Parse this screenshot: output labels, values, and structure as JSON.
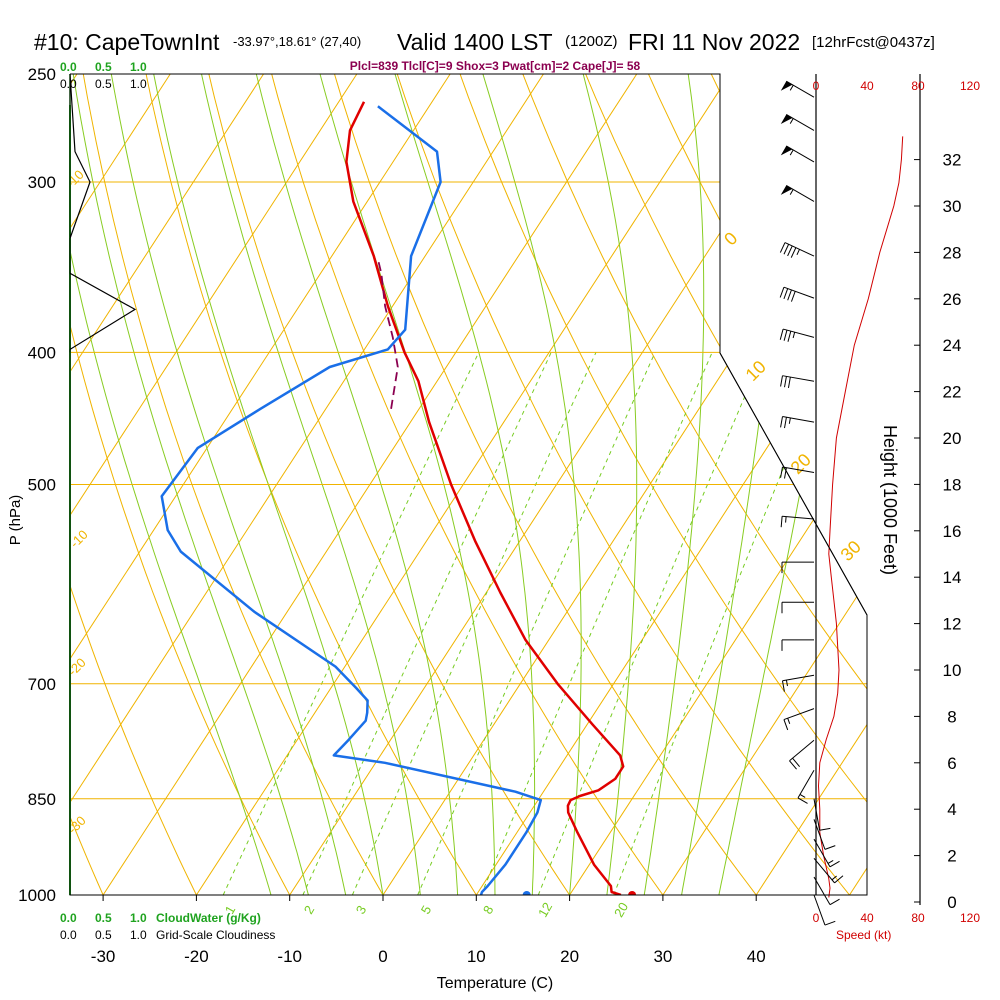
{
  "header": {
    "station": "#10: CapeTownInt",
    "coords": "-33.97°,18.61° (27,40)",
    "valid": "Valid 1400 LST",
    "zulu": "(1200Z)",
    "date": "FRI 11 Nov 2022",
    "forecast": "[12hrFcst@0437z]",
    "indices": "Plcl=839 Tlcl[C]=9 Shox=3 Pwat[cm]=2 Cape[J]= 58"
  },
  "colors": {
    "temperature": "#e00000",
    "dewpoint": "#1a6fe8",
    "isotherm": "#f0b400",
    "dry_adiabat": "#f0b400",
    "moist_adiabat": "#88cc22",
    "mixing_ratio": "#77cc22",
    "parcel": "#8b0050",
    "cloud_water": "#1fa31f",
    "wind_speed": "#d00000",
    "indices_text": "#8b0050"
  },
  "scales": {
    "cloudwater_ticks": [
      "0.0",
      "0.5",
      "1.0"
    ],
    "cloudiness_ticks": [
      "0.0",
      "0.5",
      "1.0"
    ],
    "cloudwater_label": "CloudWater (g/Kg)",
    "cloudiness_label": "Grid-Scale Cloudiness",
    "speed_ticks": [
      "0",
      "40",
      "80",
      "120"
    ],
    "speed_label": "Speed (kt)"
  },
  "chart_data": {
    "type": "line",
    "title": "Skew-T log-P sounding",
    "xlabel": "Temperature (C)",
    "ylabel": "P (hPa)",
    "y2label": "Height (1000 Feet)",
    "xlim": [
      -35,
      45
    ],
    "x_ticks": [
      -30,
      -20,
      -10,
      0,
      10,
      20,
      30,
      40
    ],
    "pressure_ticks": [
      250,
      300,
      400,
      500,
      700,
      850,
      1000
    ],
    "height_ticks": [
      0,
      2,
      4,
      6,
      8,
      10,
      12,
      14,
      16,
      18,
      20,
      22,
      24,
      26,
      28,
      30,
      32
    ],
    "isotherm_labels": [
      "-30",
      "-20",
      "-10",
      "0",
      "10",
      "20",
      "30"
    ],
    "mixing_ratio_labels": [
      "1",
      "2",
      "3",
      "5",
      "8",
      "12",
      "20"
    ],
    "series": [
      {
        "name": "Temperature",
        "pressure": [
          1000,
          995,
          985,
          950,
          900,
          870,
          860,
          852,
          846,
          838,
          822,
          805,
          790,
          750,
          700,
          650,
          600,
          550,
          500,
          450,
          420,
          400,
          370,
          340,
          310,
          290,
          275,
          262
        ],
        "temperature": [
          25.5,
          24.3,
          23.8,
          20.5,
          16.5,
          14.1,
          13.6,
          13.5,
          14.2,
          15.8,
          16.8,
          16.8,
          15.7,
          10.6,
          4.0,
          -2.5,
          -8.5,
          -14.8,
          -21.3,
          -28.0,
          -32.0,
          -35.5,
          -40.5,
          -45.5,
          -51.5,
          -55.0,
          -56.8,
          -57.3
        ]
      },
      {
        "name": "Dewpoint",
        "pressure": [
          1000,
          995,
          985,
          950,
          900,
          870,
          852,
          840,
          800,
          790,
          770,
          745,
          735,
          720,
          705,
          680,
          620,
          560,
          540,
          510,
          470,
          440,
          410,
          398,
          385,
          340,
          300,
          285,
          264
        ],
        "temperature": [
          10.5,
          10.4,
          10.6,
          11.0,
          11.0,
          10.8,
          10.3,
          7.0,
          -9.0,
          -15.0,
          -14.5,
          -14.0,
          -14.4,
          -15.2,
          -17.3,
          -21.0,
          -33.5,
          -45.6,
          -48.5,
          -51.5,
          -51.0,
          -47.0,
          -42.5,
          -37.5,
          -37.0,
          -41.5,
          -43.5,
          -46.0,
          -55.5
        ]
      },
      {
        "name": "Parcel",
        "pressure": [
          440,
          410,
          390,
          370,
          350,
          342
        ],
        "temperature": [
          -33.0,
          -35.2,
          -37.8,
          -40.8,
          -43.5,
          -44.8
        ]
      }
    ],
    "surface": {
      "temperature": 26.7,
      "dewpoint": 15.4
    },
    "wind_speed_kt": {
      "height_kft": [
        0.2,
        0.6,
        1.0,
        2.0,
        3.0,
        4.0,
        5.0,
        6.0,
        7.0,
        8.0,
        9.0,
        10.0,
        11.0,
        12.0,
        13.0,
        14.0,
        15.0,
        16.0,
        18.0,
        20.0,
        22.0,
        24.0,
        26.0,
        28.0,
        30.0,
        31.0,
        32.0,
        33.0
      ],
      "speed": [
        10,
        11,
        10,
        6,
        3,
        3,
        2,
        3,
        8,
        14,
        17,
        18,
        17,
        16,
        14,
        12,
        10,
        11,
        13,
        16,
        23,
        30,
        41,
        50,
        61,
        65,
        67,
        68
      ]
    },
    "wind_barbs": {
      "pressure": [
        260,
        275,
        290,
        310,
        340,
        365,
        390,
        420,
        450,
        490,
        530,
        570,
        610,
        650,
        690,
        730,
        770,
        810,
        850,
        880,
        910,
        940,
        970,
        1000
      ],
      "speed_kt": [
        55,
        55,
        55,
        55,
        45,
        40,
        35,
        30,
        25,
        20,
        15,
        10,
        10,
        10,
        15,
        15,
        20,
        15,
        10,
        10,
        15,
        15,
        10,
        10
      ],
      "direction_deg": [
        300,
        300,
        300,
        300,
        295,
        290,
        285,
        280,
        280,
        280,
        275,
        270,
        270,
        270,
        260,
        250,
        230,
        210,
        170,
        160,
        150,
        140,
        150,
        160
      ]
    },
    "cloud_water_gkg": {
      "pressure": [
        250,
        280,
        300,
        330,
        350,
        372,
        400
      ],
      "value": [
        0.0,
        0.0,
        0.0,
        0.0,
        0.0,
        0.0,
        0.0
      ]
    },
    "cloudiness": {
      "pressure": [
        250,
        285,
        300,
        330,
        350,
        372,
        398,
        400
      ],
      "value": [
        0.0,
        0.05,
        0.2,
        0.0,
        0.0,
        0.65,
        0.0,
        0.0
      ]
    }
  }
}
